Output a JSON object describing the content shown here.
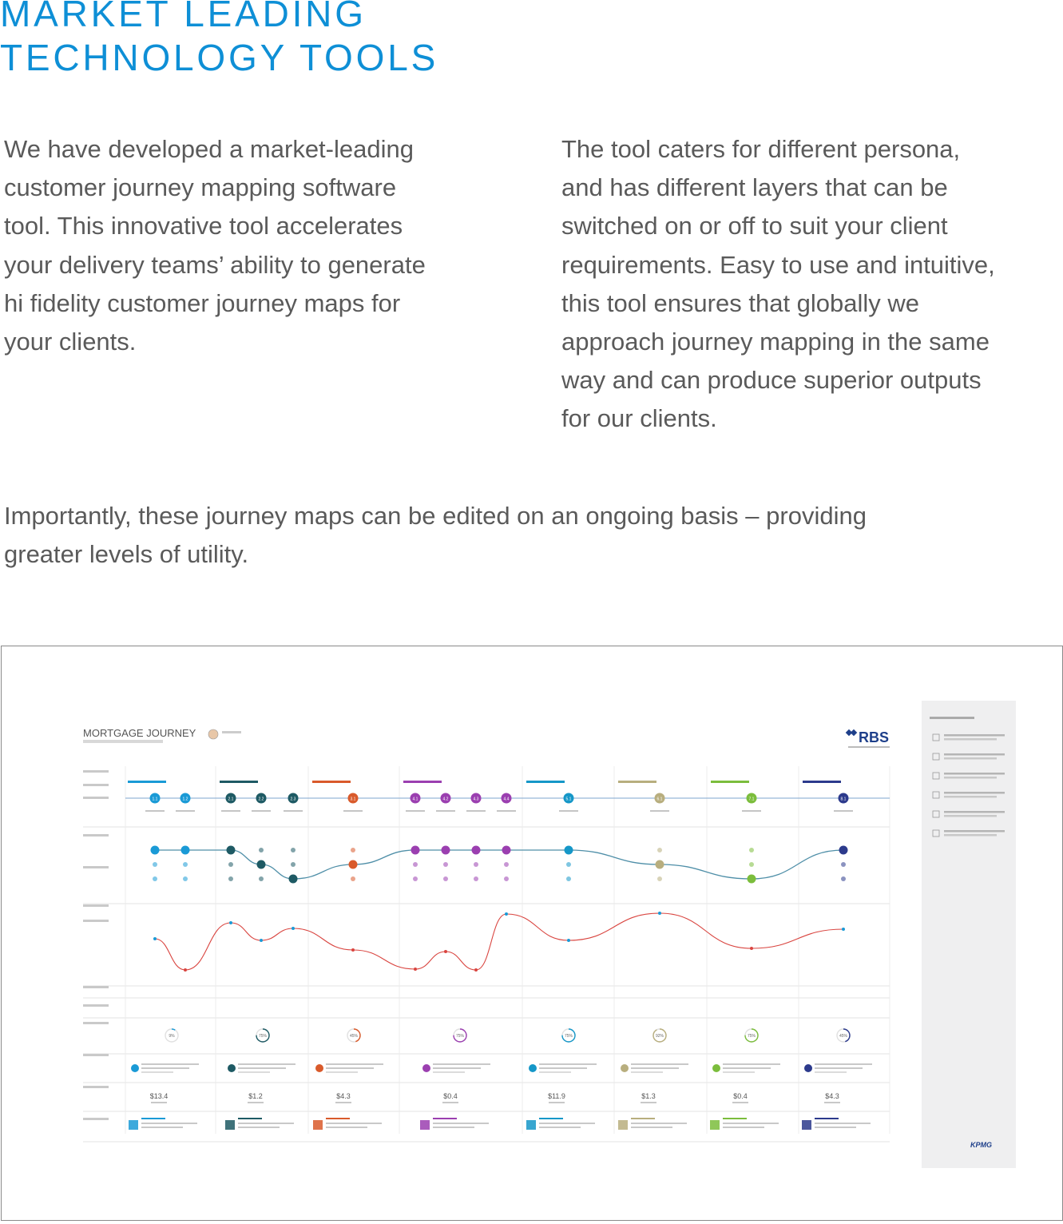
{
  "heading": {
    "line1": "MARKET LEADING",
    "line2": "TECHNOLOGY TOOLS"
  },
  "intro": {
    "left_lines": [
      "We have developed a market-leading",
      "customer journey mapping software",
      "tool.  This innovative tool accelerates",
      "your delivery teams’ ability to generate",
      "hi fidelity customer journey maps for",
      "your clients."
    ],
    "right_lines": [
      "The tool caters for different persona,",
      "and has different layers that can be",
      "switched on or off to suit your client",
      "requirements.  Easy to use and intuitive,",
      "this tool ensures that globally we",
      "approach journey mapping in the same",
      "way and can produce superior outputs",
      "for our clients."
    ],
    "bottom_lines": [
      "Importantly, these journey maps can be edited on an ongoing basis – providing",
      "greater levels of utility."
    ]
  },
  "screenshot": {
    "title": "MORTGAGE JOURNEY",
    "brand": "RBS",
    "footer_logo": "KPMG",
    "stages": [
      {
        "color": "#1a9ad6"
      },
      {
        "color": "#1e5a64"
      },
      {
        "color": "#d95a2b"
      },
      {
        "color": "#9b3fb0"
      },
      {
        "color": "#1597c8"
      },
      {
        "color": "#b8ae7e"
      },
      {
        "color": "#7bbd3c"
      },
      {
        "color": "#2c3a8c"
      }
    ],
    "step_nodes": [
      {
        "label": "1.1",
        "color": "#1a9ad6"
      },
      {
        "label": "1.2",
        "color": "#1a9ad6"
      },
      {
        "label": "2.1",
        "color": "#1e5a64"
      },
      {
        "label": "2.2",
        "color": "#1e5a64"
      },
      {
        "label": "2.3",
        "color": "#1e5a64"
      },
      {
        "label": "3.1",
        "color": "#d95a2b"
      },
      {
        "label": "4.1",
        "color": "#9b3fb0"
      },
      {
        "label": "4.2",
        "color": "#9b3fb0"
      },
      {
        "label": "4.3",
        "color": "#9b3fb0"
      },
      {
        "label": "4.4",
        "color": "#9b3fb0"
      },
      {
        "label": "5.1",
        "color": "#1597c8"
      },
      {
        "label": "6.1",
        "color": "#b8ae7e"
      },
      {
        "label": "7.1",
        "color": "#7bbd3c"
      },
      {
        "label": "8.1",
        "color": "#2c3a8c"
      }
    ],
    "gauges": [
      "9%",
      "75%",
      "45%",
      "75%",
      "75%",
      "92%",
      "75%",
      "45%"
    ],
    "values": [
      "$13.4",
      "$1.2",
      "$4.3",
      "$0.4",
      "$11.9",
      "$1.3",
      "$0.4",
      "$4.3"
    ]
  }
}
